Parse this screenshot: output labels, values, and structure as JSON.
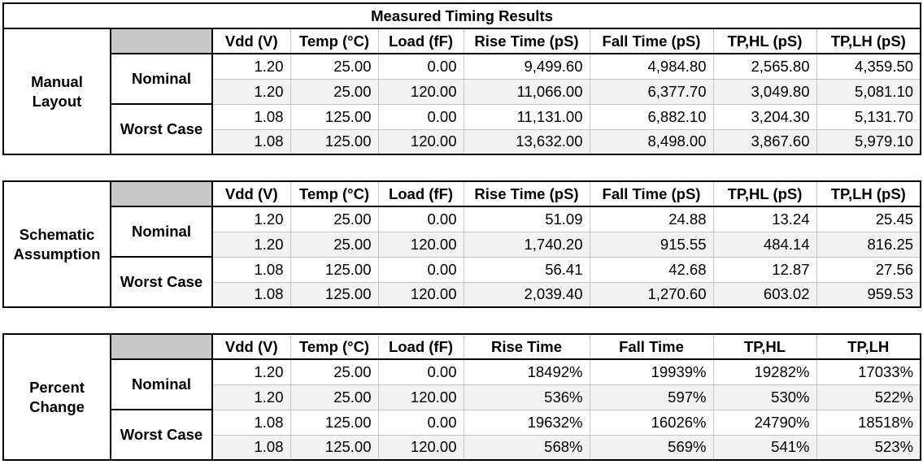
{
  "title": "Measured Timing Results",
  "sections": [
    {
      "label": "Manual Layout",
      "headers": [
        "Vdd (V)",
        "Temp (°C)",
        "Load (fF)",
        "Rise Time (pS)",
        "Fall Time (pS)",
        "TP,HL (pS)",
        "TP,LH (pS)"
      ],
      "groups": [
        {
          "label": "Nominal",
          "rows": [
            [
              "1.20",
              "25.00",
              "0.00",
              "9,499.60",
              "4,984.80",
              "2,565.80",
              "4,359.50"
            ],
            [
              "1.20",
              "25.00",
              "120.00",
              "11,066.00",
              "6,377.70",
              "3,049.80",
              "5,081.10"
            ]
          ]
        },
        {
          "label": "Worst Case",
          "rows": [
            [
              "1.08",
              "125.00",
              "0.00",
              "11,131.00",
              "6,882.10",
              "3,204.30",
              "5,131.70"
            ],
            [
              "1.08",
              "125.00",
              "120.00",
              "13,632.00",
              "8,498.00",
              "3,867.60",
              "5,979.10"
            ]
          ]
        }
      ]
    },
    {
      "label": "Schematic Assumption",
      "headers": [
        "Vdd (V)",
        "Temp (°C)",
        "Load (fF)",
        "Rise Time (pS)",
        "Fall Time (pS)",
        "TP,HL (pS)",
        "TP,LH (pS)"
      ],
      "groups": [
        {
          "label": "Nominal",
          "rows": [
            [
              "1.20",
              "25.00",
              "0.00",
              "51.09",
              "24.88",
              "13.24",
              "25.45"
            ],
            [
              "1.20",
              "25.00",
              "120.00",
              "1,740.20",
              "915.55",
              "484.14",
              "816.25"
            ]
          ]
        },
        {
          "label": "Worst Case",
          "rows": [
            [
              "1.08",
              "125.00",
              "0.00",
              "56.41",
              "42.68",
              "12.87",
              "27.56"
            ],
            [
              "1.08",
              "125.00",
              "120.00",
              "2,039.40",
              "1,270.60",
              "603.02",
              "959.53"
            ]
          ]
        }
      ]
    },
    {
      "label": "Percent Change",
      "headers": [
        "Vdd (V)",
        "Temp (°C)",
        "Load (fF)",
        "Rise Time",
        "Fall Time",
        "TP,HL",
        "TP,LH"
      ],
      "groups": [
        {
          "label": "Nominal",
          "rows": [
            [
              "1.20",
              "25.00",
              "0.00",
              "18492%",
              "19939%",
              "19282%",
              "17033%"
            ],
            [
              "1.20",
              "25.00",
              "120.00",
              "536%",
              "597%",
              "530%",
              "522%"
            ]
          ]
        },
        {
          "label": "Worst Case",
          "rows": [
            [
              "1.08",
              "125.00",
              "0.00",
              "19632%",
              "16026%",
              "24790%",
              "18518%"
            ],
            [
              "1.08",
              "125.00",
              "120.00",
              "568%",
              "569%",
              "541%",
              "523%"
            ]
          ]
        }
      ]
    }
  ]
}
